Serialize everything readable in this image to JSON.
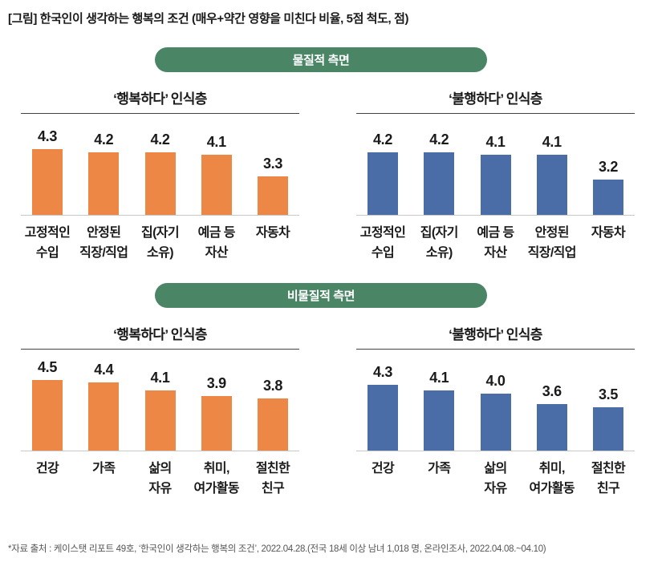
{
  "figure_title": "[그림] 한국인이 생각하는 행복의 조건 (매우+약간 영향을 미친다 비율, 5점 척도, 점)",
  "source_note": "*자료 출처 : 케이스탯 리포트 49호, ‘한국인이 생각하는 행복의 조건’, 2022.04.28.(전국 18세 이상 남녀 1,018 명, 온라인조사, 2022.04.08.~04.10)",
  "colors": {
    "orange_bar": "#ED8745",
    "blue_bar": "#4A6CA7",
    "green_pill": "#4A8566",
    "axis_line": "#C8C8C8",
    "title_rule": "#434343",
    "text": "#1A1A1A",
    "source_text": "#555555"
  },
  "sections": [
    {
      "pill_label": "물질적 측면",
      "chart_indexes": [
        0,
        1
      ]
    },
    {
      "pill_label": "비물질적 측면",
      "chart_indexes": [
        2,
        3
      ]
    }
  ],
  "chart_data": [
    {
      "type": "bar",
      "section": "물질적 측면",
      "title": "‘행복하다’ 인식층",
      "bar_color": "#ED8745",
      "categories": [
        "고정적인 수입",
        "안정된 직장/직업",
        "집(자기 소유)",
        "예금 등 자산",
        "자동차"
      ],
      "category_lines": [
        [
          "고정적인",
          "수입"
        ],
        [
          "안정된",
          "직장/직업"
        ],
        [
          "집(자기",
          "소유)"
        ],
        [
          "예금 등",
          "자산"
        ],
        [
          "자동차"
        ]
      ],
      "values": [
        4.3,
        4.2,
        4.2,
        4.1,
        3.3
      ],
      "value_labels": true,
      "ylim": [
        1.9,
        4.8
      ],
      "grid": false,
      "legend": false
    },
    {
      "type": "bar",
      "section": "물질적 측면",
      "title": "‘불행하다’ 인식층",
      "bar_color": "#4A6CA7",
      "categories": [
        "고정적인 수입",
        "집(자기 소유)",
        "예금 등 자산",
        "안정된 직장/직업",
        "자동차"
      ],
      "category_lines": [
        [
          "고정적인",
          "수입"
        ],
        [
          "집(자기",
          "소유)"
        ],
        [
          "예금 등",
          "자산"
        ],
        [
          "안정된",
          "직장/직업"
        ],
        [
          "자동차"
        ]
      ],
      "values": [
        4.2,
        4.2,
        4.1,
        4.1,
        3.2
      ],
      "value_labels": true,
      "ylim": [
        1.9,
        4.8
      ],
      "grid": false,
      "legend": false
    },
    {
      "type": "bar",
      "section": "비물질적 측면",
      "title": "‘행복하다’ 인식층",
      "bar_color": "#ED8745",
      "categories": [
        "건강",
        "가족",
        "삶의 자유",
        "취미, 여가활동",
        "절친한 친구"
      ],
      "category_lines": [
        [
          "건강"
        ],
        [
          "가족"
        ],
        [
          "삶의",
          "자유"
        ],
        [
          "취미,",
          "여가활동"
        ],
        [
          "절친한",
          "친구"
        ]
      ],
      "values": [
        4.5,
        4.4,
        4.1,
        3.9,
        3.8
      ],
      "value_labels": true,
      "ylim": [
        1.9,
        4.8
      ],
      "grid": false,
      "legend": false
    },
    {
      "type": "bar",
      "section": "비물질적 측면",
      "title": "‘불행하다’ 인식층",
      "bar_color": "#4A6CA7",
      "categories": [
        "건강",
        "가족",
        "삶의 자유",
        "취미, 여가활동",
        "절친한 친구"
      ],
      "category_lines": [
        [
          "건강"
        ],
        [
          "가족"
        ],
        [
          "삶의",
          "자유"
        ],
        [
          "취미,",
          "여가활동"
        ],
        [
          "절친한",
          "친구"
        ]
      ],
      "values": [
        4.3,
        4.1,
        4.0,
        3.6,
        3.5
      ],
      "value_labels": true,
      "ylim": [
        1.9,
        4.8
      ],
      "grid": false,
      "legend": false
    }
  ]
}
